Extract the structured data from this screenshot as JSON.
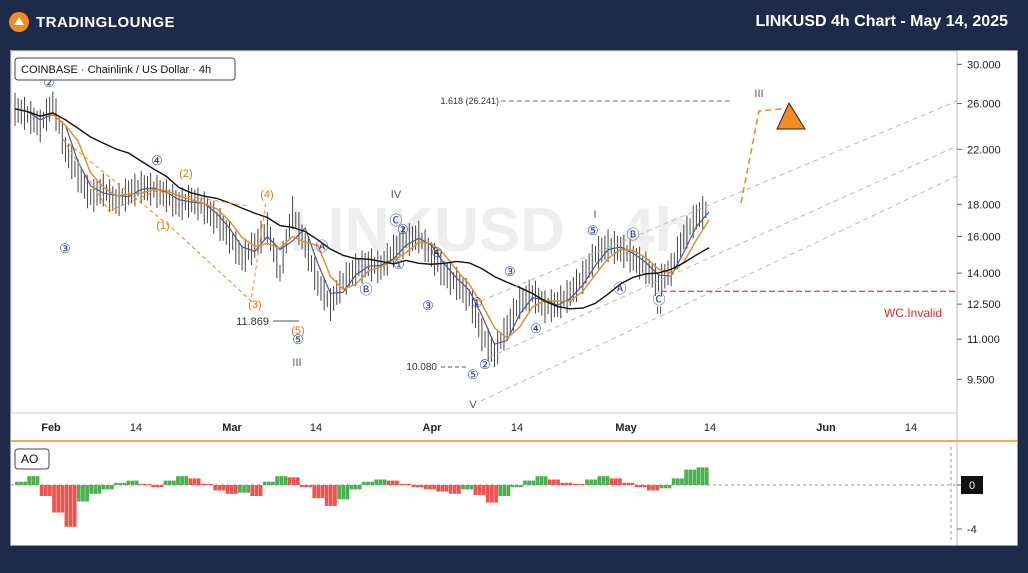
{
  "header": {
    "brand": "TRADINGLOUNGE",
    "title": "LINKUSD 4h Chart - May 14, 2025"
  },
  "symbol_legend": "COINBASE · Chainlink / US Dollar · 4h",
  "watermark": "LINKUSD · 4h",
  "oscillator_legend": "AO",
  "colors": {
    "background": "#1d2a4a",
    "ma_black": "#111111",
    "ma_orange": "#e08a2e",
    "ma_blue": "#4a5a8c",
    "invalid": "#e03030",
    "ao_up": "#4caf50",
    "ao_down": "#ef5350",
    "wave": "#3a4a8a",
    "projection": "#f28c20"
  },
  "annotations": {
    "fib": "1.618 (26.241)",
    "invalid": "WC.Invalid",
    "low1": "11.869",
    "low2": "10.080"
  },
  "wave_labels": [
    {
      "t": "②",
      "style": "circle",
      "color": "#2a3a80"
    },
    {
      "t": "③",
      "style": "circle",
      "color": "#2a3a80"
    },
    {
      "t": "④",
      "style": "circle",
      "color": "#2a3a80"
    },
    {
      "t": "(2)",
      "style": "plain",
      "color": "#e07a10"
    },
    {
      "t": "(1)",
      "style": "plain",
      "color": "#e07a10"
    },
    {
      "t": "(4)",
      "style": "plain",
      "color": "#e07a10"
    },
    {
      "t": "(3)",
      "style": "plain",
      "color": "#e07a10"
    },
    {
      "t": "(5)",
      "style": "plain",
      "color": "#e07a10"
    },
    {
      "t": "⑤",
      "style": "circle",
      "color": "#2a3a80"
    },
    {
      "t": "III",
      "style": "plain",
      "color": "#555555"
    },
    {
      "t": "IV",
      "style": "plain",
      "color": "#555555"
    },
    {
      "t": "Ⓒ",
      "style": "circle",
      "color": "#2a3a80"
    },
    {
      "t": "②",
      "style": "circle",
      "color": "#2a3a80"
    },
    {
      "t": "Ⓐ",
      "style": "circle",
      "color": "#2a3a80"
    },
    {
      "t": "Ⓑ",
      "style": "circle",
      "color": "#2a3a80"
    },
    {
      "t": "①",
      "style": "circle",
      "color": "#2a3a80"
    },
    {
      "t": "④",
      "style": "circle",
      "color": "#2a3a80"
    },
    {
      "t": "③",
      "style": "circle",
      "color": "#2a3a80"
    },
    {
      "t": "①",
      "style": "circle",
      "color": "#2a3a80"
    },
    {
      "t": "⑤",
      "style": "circle",
      "color": "#2a3a80"
    },
    {
      "t": "②",
      "style": "circle",
      "color": "#2a3a80"
    },
    {
      "t": "V",
      "style": "plain",
      "color": "#555555"
    },
    {
      "t": "③",
      "style": "circle",
      "color": "#2a3a80"
    },
    {
      "t": "④",
      "style": "circle",
      "color": "#2a3a80"
    },
    {
      "t": "I",
      "style": "plain",
      "color": "#555555"
    },
    {
      "t": "⑤",
      "style": "circle",
      "color": "#2a3a80"
    },
    {
      "t": "Ⓑ",
      "style": "circle",
      "color": "#2a3a80"
    },
    {
      "t": "Ⓐ",
      "style": "circle",
      "color": "#2a3a80"
    },
    {
      "t": "Ⓒ",
      "style": "circle",
      "color": "#2a3a80"
    },
    {
      "t": "II",
      "style": "plain",
      "color": "#555555"
    },
    {
      "t": "III",
      "style": "plain",
      "color": "#555555"
    }
  ],
  "chart_data": {
    "type": "line",
    "title": "LINKUSD 4h Chart - May 14, 2025",
    "yscale": "log",
    "ylim": [
      8.4,
      31.5
    ],
    "price_ticks": [
      "30.000",
      "26.000",
      "22.000",
      "18.000",
      "16.000",
      "14.000",
      "12.500",
      "11.000",
      "9.500"
    ],
    "date_ticks": [
      "Feb",
      "14",
      "Mar",
      "14",
      "Apr",
      "14",
      "May",
      "14",
      "Jun",
      "14"
    ],
    "close_approx": [
      25.5,
      25.0,
      24.0,
      26.0,
      22.0,
      20.0,
      18.5,
      19.0,
      18.2,
      18.8,
      19.2,
      19.0,
      18.6,
      18.0,
      18.3,
      17.8,
      17.0,
      16.0,
      14.8,
      15.5,
      16.5,
      14.0,
      17.5,
      15.5,
      13.5,
      12.5,
      13.6,
      14.2,
      14.5,
      14.3,
      15.2,
      15.8,
      16.0,
      15.0,
      14.0,
      13.5,
      12.8,
      11.2,
      10.4,
      11.5,
      12.6,
      13.0,
      12.4,
      12.5,
      13.0,
      13.8,
      15.0,
      15.5,
      15.3,
      14.8,
      14.3,
      13.5,
      14.2,
      16.0,
      17.2,
      17.8
    ],
    "series": [
      {
        "name": "AO",
        "values": [
          0.3,
          0.8,
          -1.0,
          -2.5,
          -3.8,
          -1.5,
          -0.8,
          -0.4,
          0.2,
          0.4,
          0.1,
          -0.2,
          0.4,
          0.8,
          0.6,
          0.1,
          -0.5,
          -0.8,
          -0.7,
          -1.0,
          0.3,
          0.8,
          0.7,
          -0.2,
          -1.2,
          -1.9,
          -1.3,
          -0.4,
          0.3,
          0.5,
          0.4,
          0.1,
          -0.2,
          -0.4,
          -0.6,
          -0.8,
          -0.4,
          -0.9,
          -1.6,
          -1.0,
          -0.2,
          0.4,
          0.8,
          0.5,
          0.2,
          0.1,
          0.5,
          0.8,
          0.6,
          0.2,
          -0.2,
          -0.5,
          -0.3,
          0.6,
          1.4,
          1.6
        ]
      }
    ],
    "ao_ticks": [
      "0",
      "-4"
    ]
  }
}
